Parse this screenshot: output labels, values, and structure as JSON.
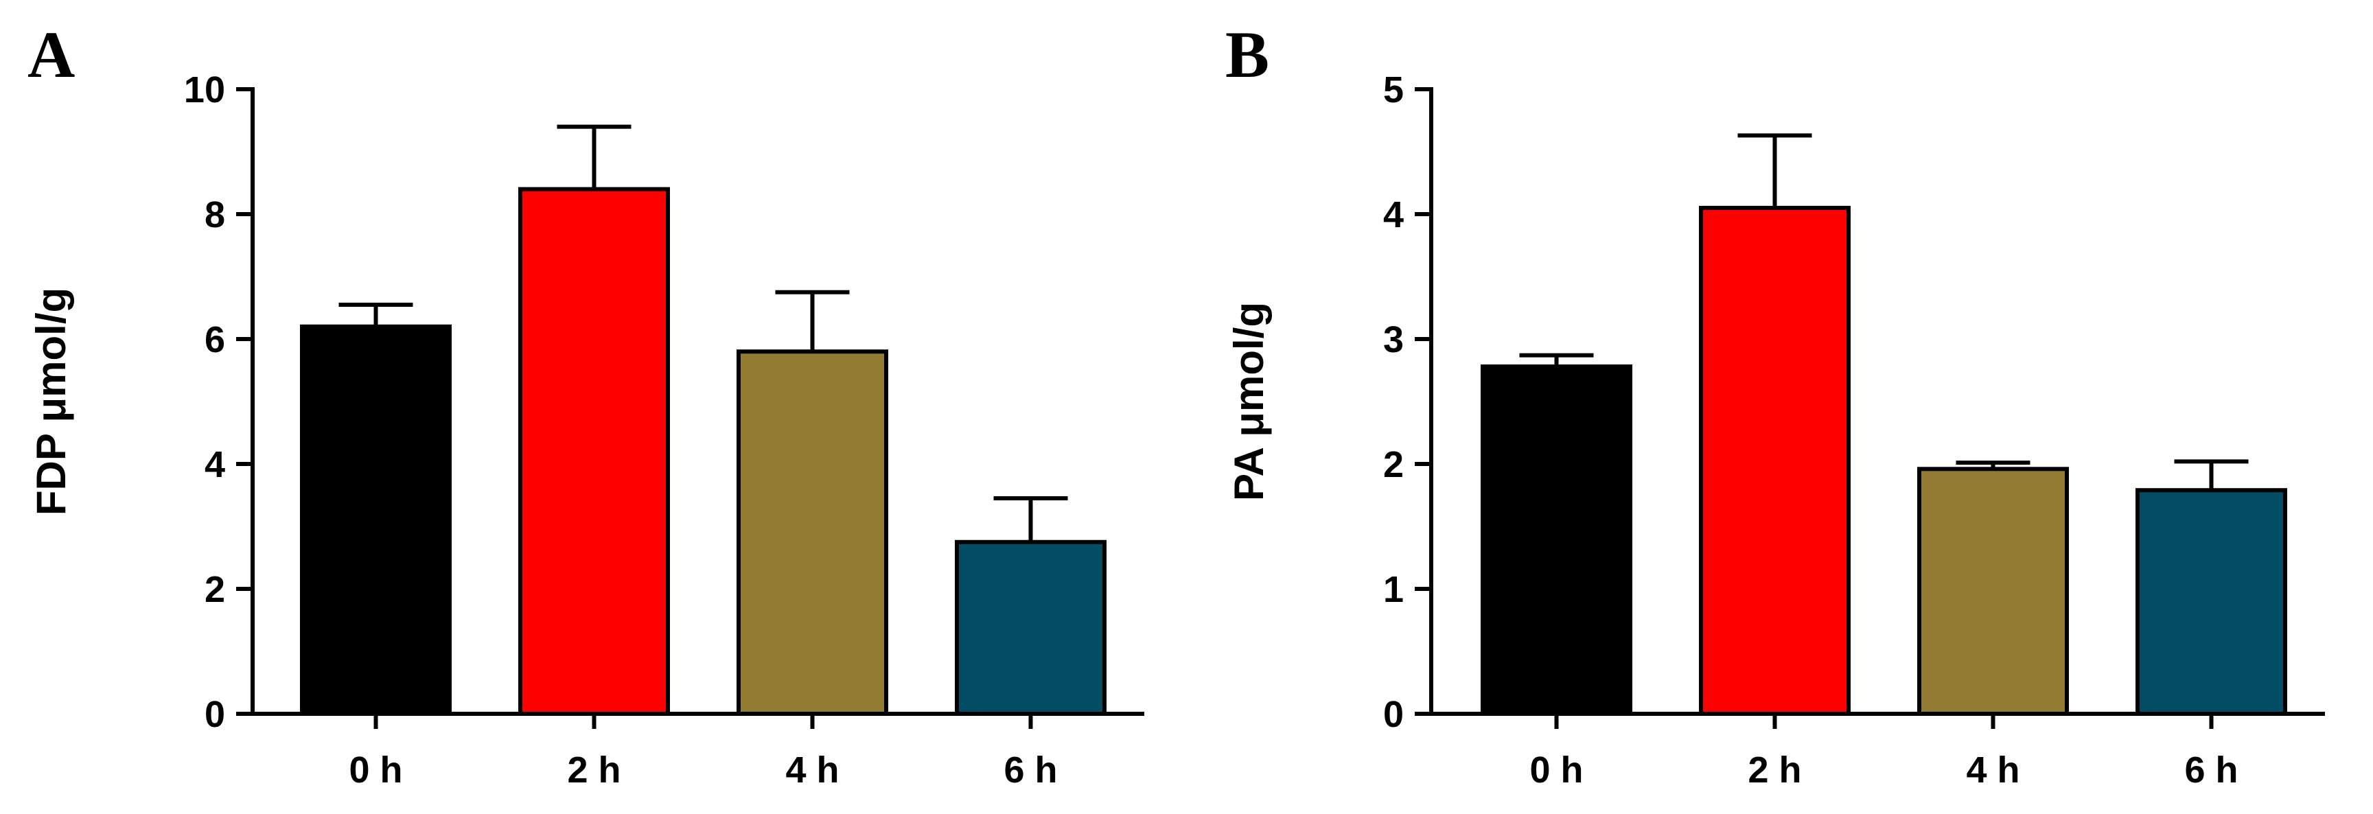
{
  "chart_data": [
    {
      "panel": "A",
      "type": "bar",
      "categories": [
        "0 h",
        "2 h",
        "4 h",
        "6 h"
      ],
      "values": [
        6.2,
        8.4,
        5.8,
        2.75
      ],
      "errors": [
        0.35,
        1.0,
        0.95,
        0.7
      ],
      "colors": [
        "#000000",
        "#ff0000",
        "#917c31",
        "#024d63"
      ],
      "ylabel": "FDP μmol/g",
      "xlabel": "",
      "ylim": [
        0,
        10
      ],
      "yticks": [
        "0",
        "2",
        "4",
        "6",
        "8",
        "10"
      ],
      "grid": false,
      "legend": "none"
    },
    {
      "panel": "B",
      "type": "bar",
      "categories": [
        "0 h",
        "2 h",
        "4 h",
        "6 h"
      ],
      "values": [
        2.78,
        4.05,
        1.96,
        1.79
      ],
      "errors": [
        0.09,
        0.58,
        0.05,
        0.23
      ],
      "colors": [
        "#000000",
        "#ff0000",
        "#917c31",
        "#024d63"
      ],
      "ylabel": "PA μmol/g",
      "xlabel": "",
      "ylim": [
        0,
        5
      ],
      "yticks": [
        "0",
        "1",
        "2",
        "3",
        "4",
        "5"
      ],
      "grid": false,
      "legend": "none"
    }
  ]
}
